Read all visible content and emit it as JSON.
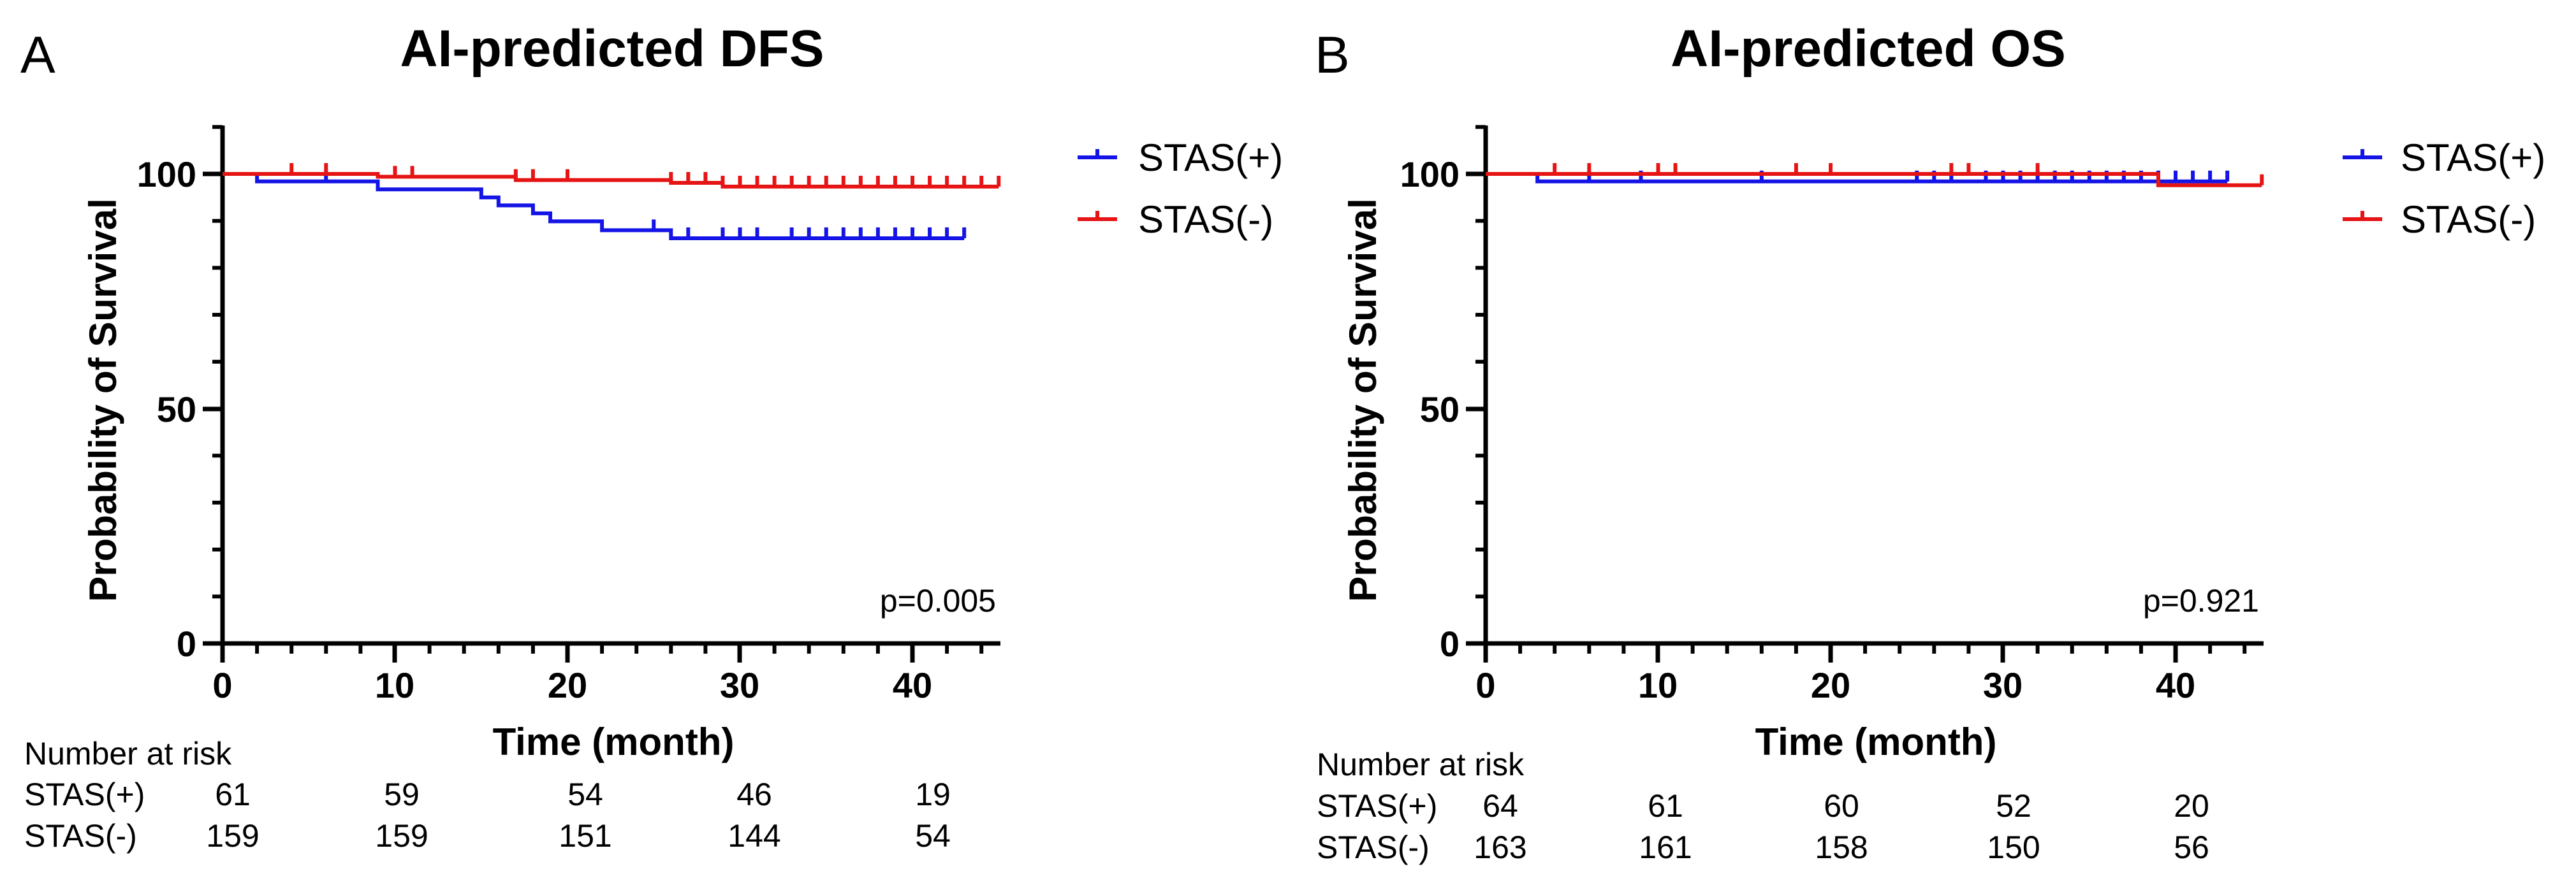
{
  "chart_data": [
    {
      "type": "line",
      "panel_label": "A",
      "title": "AI-predicted DFS",
      "xlabel": "Time (month)",
      "ylabel": "Probability of Survival",
      "xlim": [
        0,
        45
      ],
      "ylim": [
        0,
        110
      ],
      "xticks": [
        0,
        10,
        20,
        30,
        40
      ],
      "yticks": [
        0,
        50,
        100
      ],
      "p_value": "p=0.005",
      "series": [
        {
          "name": "STAS(+)",
          "color": "#1414e6",
          "steps": [
            [
              0,
              100
            ],
            [
              2,
              100
            ],
            [
              2,
              98.4
            ],
            [
              9,
              98.4
            ],
            [
              9,
              96.7
            ],
            [
              15,
              96.7
            ],
            [
              15,
              95
            ],
            [
              16,
              95
            ],
            [
              16,
              93.3
            ],
            [
              18,
              93.3
            ],
            [
              18,
              91.6
            ],
            [
              19,
              91.6
            ],
            [
              19,
              89.9
            ],
            [
              22,
              89.9
            ],
            [
              22,
              88
            ],
            [
              26,
              88
            ],
            [
              26,
              86.3
            ],
            [
              43,
              86.3
            ]
          ],
          "censor": [
            [
              6,
              98.4
            ],
            [
              25,
              88
            ],
            [
              27,
              86.3
            ],
            [
              29,
              86.3
            ],
            [
              30,
              86.3
            ],
            [
              31,
              86.3
            ],
            [
              33,
              86.3
            ],
            [
              34,
              86.3
            ],
            [
              35,
              86.3
            ],
            [
              36,
              86.3
            ],
            [
              37,
              86.3
            ],
            [
              38,
              86.3
            ],
            [
              39,
              86.3
            ],
            [
              40,
              86.3
            ],
            [
              41,
              86.3
            ],
            [
              42,
              86.3
            ],
            [
              43,
              86.3
            ]
          ]
        },
        {
          "name": "STAS(-)",
          "color": "#e61414",
          "steps": [
            [
              0,
              100
            ],
            [
              9,
              100
            ],
            [
              9,
              99.4
            ],
            [
              17,
              99.4
            ],
            [
              17,
              98.7
            ],
            [
              26,
              98.7
            ],
            [
              26,
              98.1
            ],
            [
              29,
              98.1
            ],
            [
              29,
              97.3
            ],
            [
              45,
              97.3
            ]
          ],
          "censor": [
            [
              4,
              100
            ],
            [
              6,
              100
            ],
            [
              10,
              99.4
            ],
            [
              11,
              99.4
            ],
            [
              17,
              98.7
            ],
            [
              18,
              98.7
            ],
            [
              20,
              98.7
            ],
            [
              26,
              98.1
            ],
            [
              27,
              98.1
            ],
            [
              28,
              98.1
            ],
            [
              29,
              97.3
            ],
            [
              30,
              97.3
            ],
            [
              31,
              97.3
            ],
            [
              32,
              97.3
            ],
            [
              33,
              97.3
            ],
            [
              34,
              97.3
            ],
            [
              35,
              97.3
            ],
            [
              36,
              97.3
            ],
            [
              37,
              97.3
            ],
            [
              38,
              97.3
            ],
            [
              39,
              97.3
            ],
            [
              40,
              97.3
            ],
            [
              41,
              97.3
            ],
            [
              42,
              97.3
            ],
            [
              43,
              97.3
            ],
            [
              44,
              97.3
            ],
            [
              45,
              97.3
            ]
          ]
        }
      ],
      "risk_table": {
        "header": "Number at risk",
        "rows": [
          {
            "label": "STAS(+)",
            "values": [
              "61",
              "59",
              "54",
              "46",
              "19"
            ]
          },
          {
            "label": "STAS(-)",
            "values": [
              "159",
              "159",
              "151",
              "144",
              "54"
            ]
          }
        ]
      }
    },
    {
      "type": "line",
      "panel_label": "B",
      "title": "AI-predicted OS",
      "xlabel": "Time (month)",
      "ylabel": "Probability of Survival",
      "xlim": [
        0,
        45
      ],
      "ylim": [
        0,
        110
      ],
      "xticks": [
        0,
        10,
        20,
        30,
        40
      ],
      "yticks": [
        0,
        50,
        100
      ],
      "p_value": "p=0.921",
      "series": [
        {
          "name": "STAS(+)",
          "color": "#1414e6",
          "steps": [
            [
              0,
              100
            ],
            [
              3,
              100
            ],
            [
              3,
              98.4
            ],
            [
              43,
              98.4
            ]
          ],
          "censor": [
            [
              6,
              98.4
            ],
            [
              9,
              98.4
            ],
            [
              16,
              98.4
            ],
            [
              25,
              98.4
            ],
            [
              26,
              98.4
            ],
            [
              27,
              98.4
            ],
            [
              29,
              98.4
            ],
            [
              30,
              98.4
            ],
            [
              31,
              98.4
            ],
            [
              32,
              98.4
            ],
            [
              33,
              98.4
            ],
            [
              34,
              98.4
            ],
            [
              35,
              98.4
            ],
            [
              36,
              98.4
            ],
            [
              37,
              98.4
            ],
            [
              38,
              98.4
            ],
            [
              39,
              98.4
            ],
            [
              40,
              98.4
            ],
            [
              41,
              98.4
            ],
            [
              42,
              98.4
            ],
            [
              43,
              98.4
            ]
          ]
        },
        {
          "name": "STAS(-)",
          "color": "#e61414",
          "steps": [
            [
              0,
              100
            ],
            [
              39,
              100
            ],
            [
              39,
              97.6
            ],
            [
              45,
              97.6
            ]
          ],
          "censor": [
            [
              4,
              100
            ],
            [
              6,
              100
            ],
            [
              10,
              100
            ],
            [
              11,
              100
            ],
            [
              18,
              100
            ],
            [
              20,
              100
            ],
            [
              27,
              100
            ],
            [
              28,
              100
            ],
            [
              32,
              100
            ],
            [
              45,
              97.6
            ]
          ]
        }
      ],
      "risk_table": {
        "header": "Number at risk",
        "rows": [
          {
            "label": "STAS(+)",
            "values": [
              "64",
              "61",
              "60",
              "52",
              "20"
            ]
          },
          {
            "label": "STAS(-)",
            "values": [
              "163",
              "161",
              "158",
              "150",
              "56"
            ]
          }
        ]
      }
    }
  ]
}
